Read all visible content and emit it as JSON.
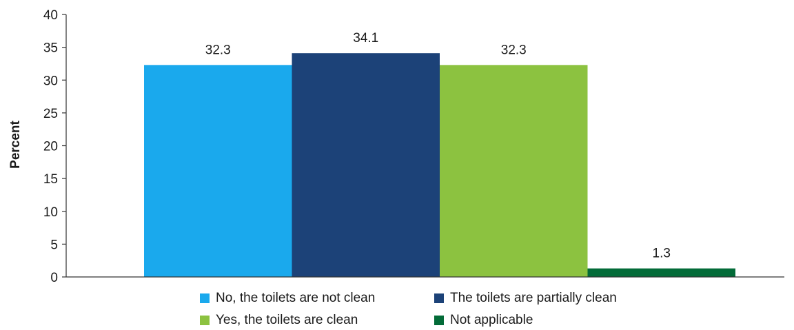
{
  "chart_data": {
    "type": "bar",
    "ylabel": "Percent",
    "xlabel": "",
    "ylim": [
      0,
      40
    ],
    "yticks": [
      0,
      5,
      10,
      15,
      20,
      25,
      30,
      35,
      40
    ],
    "grid": false,
    "legend_position": "bottom",
    "series": [
      {
        "name": "No, the toilets are not clean",
        "value": 32.3,
        "label": "32.3",
        "color": "#1aa9ed"
      },
      {
        "name": "The toilets are partially clean",
        "value": 34.1,
        "label": "34.1",
        "color": "#1c4278"
      },
      {
        "name": "Yes, the toilets are clean",
        "value": 32.3,
        "label": "32.3",
        "color": "#8cc240"
      },
      {
        "name": "Not applicable",
        "value": 1.3,
        "label": "1.3",
        "color": "#036b38"
      }
    ]
  }
}
